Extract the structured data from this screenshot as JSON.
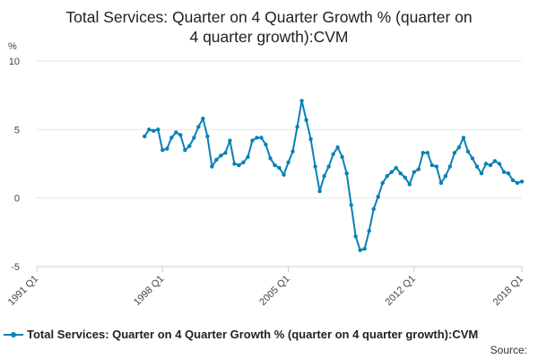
{
  "chart_data": {
    "type": "line",
    "title_lines": [
      "Total Services: Quarter on 4 Quarter Growth % (quarter on",
      "4 quarter growth):CVM"
    ],
    "ylabel": "%",
    "ylim": [
      -5,
      10
    ],
    "yticks": [
      -5,
      0,
      5,
      10
    ],
    "x_range": [
      "1991 Q1",
      "2018 Q1"
    ],
    "xticks": [
      "1991 Q1",
      "1998 Q1",
      "2005 Q1",
      "2012 Q1",
      "2018 Q1"
    ],
    "grid": true,
    "legend_position": "bottom",
    "color": "#0a80b6",
    "series": [
      {
        "name": "Total Services: Quarter on 4 Quarter Growth % (quarter on 4 quarter growth):CVM",
        "x": [
          "1997 Q1",
          "1997 Q2",
          "1997 Q3",
          "1997 Q4",
          "1998 Q1",
          "1998 Q2",
          "1998 Q3",
          "1998 Q4",
          "1999 Q1",
          "1999 Q2",
          "1999 Q3",
          "1999 Q4",
          "2000 Q1",
          "2000 Q2",
          "2000 Q3",
          "2000 Q4",
          "2001 Q1",
          "2001 Q2",
          "2001 Q3",
          "2001 Q4",
          "2002 Q1",
          "2002 Q2",
          "2002 Q3",
          "2002 Q4",
          "2003 Q1",
          "2003 Q2",
          "2003 Q3",
          "2003 Q4",
          "2004 Q1",
          "2004 Q2",
          "2004 Q3",
          "2004 Q4",
          "2005 Q1",
          "2005 Q2",
          "2005 Q3",
          "2005 Q4",
          "2006 Q1",
          "2006 Q2",
          "2006 Q3",
          "2006 Q4",
          "2007 Q1",
          "2007 Q2",
          "2007 Q3",
          "2007 Q4",
          "2008 Q1",
          "2008 Q2",
          "2008 Q3",
          "2008 Q4",
          "2009 Q1",
          "2009 Q2",
          "2009 Q3",
          "2009 Q4",
          "2010 Q1",
          "2010 Q2",
          "2010 Q3",
          "2010 Q4",
          "2011 Q1",
          "2011 Q2",
          "2011 Q3",
          "2011 Q4",
          "2012 Q1",
          "2012 Q2",
          "2012 Q3",
          "2012 Q4",
          "2013 Q1",
          "2013 Q2",
          "2013 Q3",
          "2013 Q4",
          "2014 Q1",
          "2014 Q2",
          "2014 Q3",
          "2014 Q4",
          "2015 Q1",
          "2015 Q2",
          "2015 Q3",
          "2015 Q4",
          "2016 Q1",
          "2016 Q2",
          "2016 Q3",
          "2016 Q4",
          "2017 Q1",
          "2017 Q2",
          "2017 Q3",
          "2017 Q4",
          "2018 Q1"
        ],
        "values": [
          4.5,
          5.0,
          4.9,
          5.0,
          3.5,
          3.6,
          4.4,
          4.8,
          4.6,
          3.5,
          3.8,
          4.4,
          5.2,
          5.8,
          4.5,
          2.3,
          2.8,
          3.1,
          3.3,
          4.2,
          2.5,
          2.4,
          2.6,
          3.0,
          4.2,
          4.4,
          4.4,
          3.9,
          2.9,
          2.4,
          2.2,
          1.7,
          2.6,
          3.4,
          5.2,
          7.1,
          5.7,
          4.3,
          2.3,
          0.5,
          1.6,
          2.3,
          3.2,
          3.7,
          3.0,
          1.8,
          -0.5,
          -2.8,
          -3.8,
          -3.7,
          -2.4,
          -0.8,
          0.1,
          1.1,
          1.6,
          1.9,
          2.2,
          1.8,
          1.5,
          1.0,
          1.9,
          2.1,
          3.3,
          3.3,
          2.4,
          2.3,
          1.1,
          1.6,
          2.3,
          3.3,
          3.7,
          4.4,
          3.4,
          2.9,
          2.3,
          1.8,
          2.5,
          2.4,
          2.7,
          2.5,
          1.9,
          1.8,
          1.3,
          1.1,
          1.2
        ]
      }
    ]
  },
  "legend": {
    "label": "Total Services: Quarter on 4 Quarter Growth % (quarter on 4 quarter growth):CVM"
  },
  "source": {
    "label": "Source:"
  }
}
